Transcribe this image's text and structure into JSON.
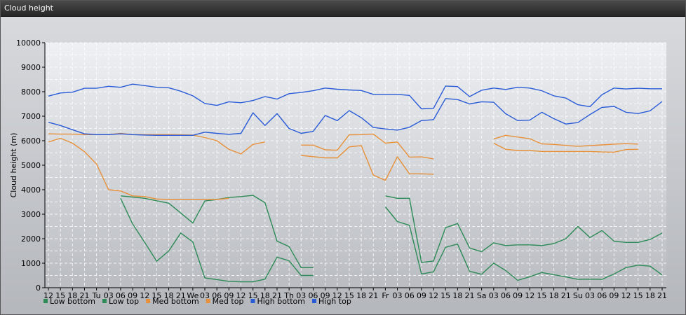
{
  "window": {
    "title": "Cloud height"
  },
  "chart_data": {
    "type": "line",
    "title": "",
    "xlabel": "",
    "ylabel": "Cloud height (m)",
    "ylim": [
      0,
      10000
    ],
    "yticks": [
      0,
      1000,
      2000,
      3000,
      4000,
      5000,
      6000,
      7000,
      8000,
      9000,
      10000
    ],
    "grid": true,
    "legend": "bottom-left",
    "x_tick_labels": [
      "12",
      "15",
      "18",
      "21",
      "Tu",
      "03",
      "06",
      "09",
      "12",
      "15",
      "18",
      "21",
      "We",
      "03",
      "06",
      "09",
      "12",
      "15",
      "18",
      "21",
      "Th",
      "03",
      "06",
      "09",
      "12",
      "15",
      "18",
      "21",
      "Fr",
      "03",
      "06",
      "09",
      "12",
      "15",
      "18",
      "21",
      "Sa",
      "03",
      "06",
      "09",
      "12",
      "15",
      "18",
      "21",
      "Su",
      "03",
      "06",
      "09",
      "12",
      "15",
      "18",
      "21"
    ],
    "series": [
      {
        "name": "Low bottom",
        "color": "#2e8b57",
        "values": [
          null,
          null,
          null,
          null,
          null,
          null,
          3650,
          2600,
          1850,
          1080,
          1500,
          2230,
          1870,
          400,
          330,
          260,
          240,
          240,
          350,
          1250,
          1100,
          500,
          500,
          null,
          null,
          null,
          null,
          null,
          3300,
          2700,
          2550,
          560,
          650,
          1650,
          1780,
          670,
          550,
          1000,
          700,
          300,
          450,
          620,
          530,
          440,
          340,
          350,
          340,
          560,
          820,
          920,
          880,
          520
        ]
      },
      {
        "name": "Low top",
        "color": "#2e8b57",
        "values": [
          null,
          null,
          null,
          null,
          null,
          null,
          3750,
          3700,
          3650,
          3550,
          3450,
          3050,
          2640,
          3540,
          3600,
          3680,
          3720,
          3770,
          3470,
          1900,
          1680,
          820,
          820,
          null,
          null,
          null,
          null,
          null,
          3750,
          3650,
          3650,
          1030,
          1090,
          2450,
          2620,
          1620,
          1470,
          1830,
          1720,
          1750,
          1750,
          1720,
          1800,
          2000,
          2500,
          2050,
          2330,
          1900,
          1850,
          1850,
          1970,
          2230
        ]
      },
      {
        "name": "Med bottom",
        "color": "#e8913a",
        "values": [
          5950,
          6100,
          5900,
          5550,
          5050,
          4000,
          3950,
          3750,
          3720,
          3620,
          3600,
          3600,
          3600,
          3600,
          3600,
          3650,
          null,
          null,
          null,
          null,
          null,
          5400,
          5350,
          5300,
          5300,
          5750,
          5800,
          4600,
          4380,
          5350,
          4650,
          4650,
          4630,
          null,
          null,
          null,
          null,
          5900,
          5650,
          5600,
          5600,
          5560,
          5560,
          5560,
          5560,
          5560,
          5540,
          5530,
          5640,
          5650,
          null,
          null
        ]
      },
      {
        "name": "Med top",
        "color": "#e8913a",
        "values": [
          6280,
          6270,
          6270,
          6250,
          6250,
          6250,
          6300,
          6250,
          6250,
          6250,
          6250,
          6240,
          6230,
          6130,
          6000,
          5650,
          5460,
          5850,
          5950,
          null,
          null,
          5820,
          5820,
          5630,
          5610,
          6240,
          6250,
          6270,
          5900,
          5950,
          5330,
          5340,
          5260,
          null,
          null,
          null,
          null,
          6070,
          6220,
          6150,
          6080,
          5870,
          5850,
          5810,
          5770,
          5800,
          5830,
          5860,
          5880,
          5860,
          null,
          null
        ]
      },
      {
        "name": "High bottom",
        "color": "#2a5bd7",
        "values": [
          6750,
          6620,
          6450,
          6280,
          6250,
          6250,
          6280,
          6250,
          6230,
          6220,
          6220,
          6220,
          6220,
          6350,
          6300,
          6260,
          6300,
          7140,
          6620,
          7110,
          6500,
          6300,
          6380,
          7030,
          6820,
          7230,
          6940,
          6540,
          6480,
          6430,
          6550,
          6820,
          6860,
          7720,
          7680,
          7500,
          7590,
          7570,
          7100,
          6820,
          6840,
          7160,
          6900,
          6680,
          6740,
          7070,
          7360,
          7400,
          7160,
          7110,
          7220,
          7600
        ]
      },
      {
        "name": "High top",
        "color": "#2a5bd7",
        "values": [
          7820,
          7950,
          7980,
          8140,
          8140,
          8220,
          8180,
          8310,
          8250,
          8180,
          8160,
          8020,
          7830,
          7520,
          7440,
          7590,
          7550,
          7640,
          7800,
          7700,
          7920,
          7970,
          8040,
          8150,
          8100,
          8070,
          8050,
          7890,
          7890,
          7890,
          7850,
          7300,
          7320,
          8230,
          8210,
          7800,
          8060,
          8150,
          8090,
          8180,
          8150,
          8040,
          7830,
          7740,
          7470,
          7390,
          7880,
          8150,
          8110,
          8140,
          8120,
          8120
        ]
      }
    ]
  }
}
